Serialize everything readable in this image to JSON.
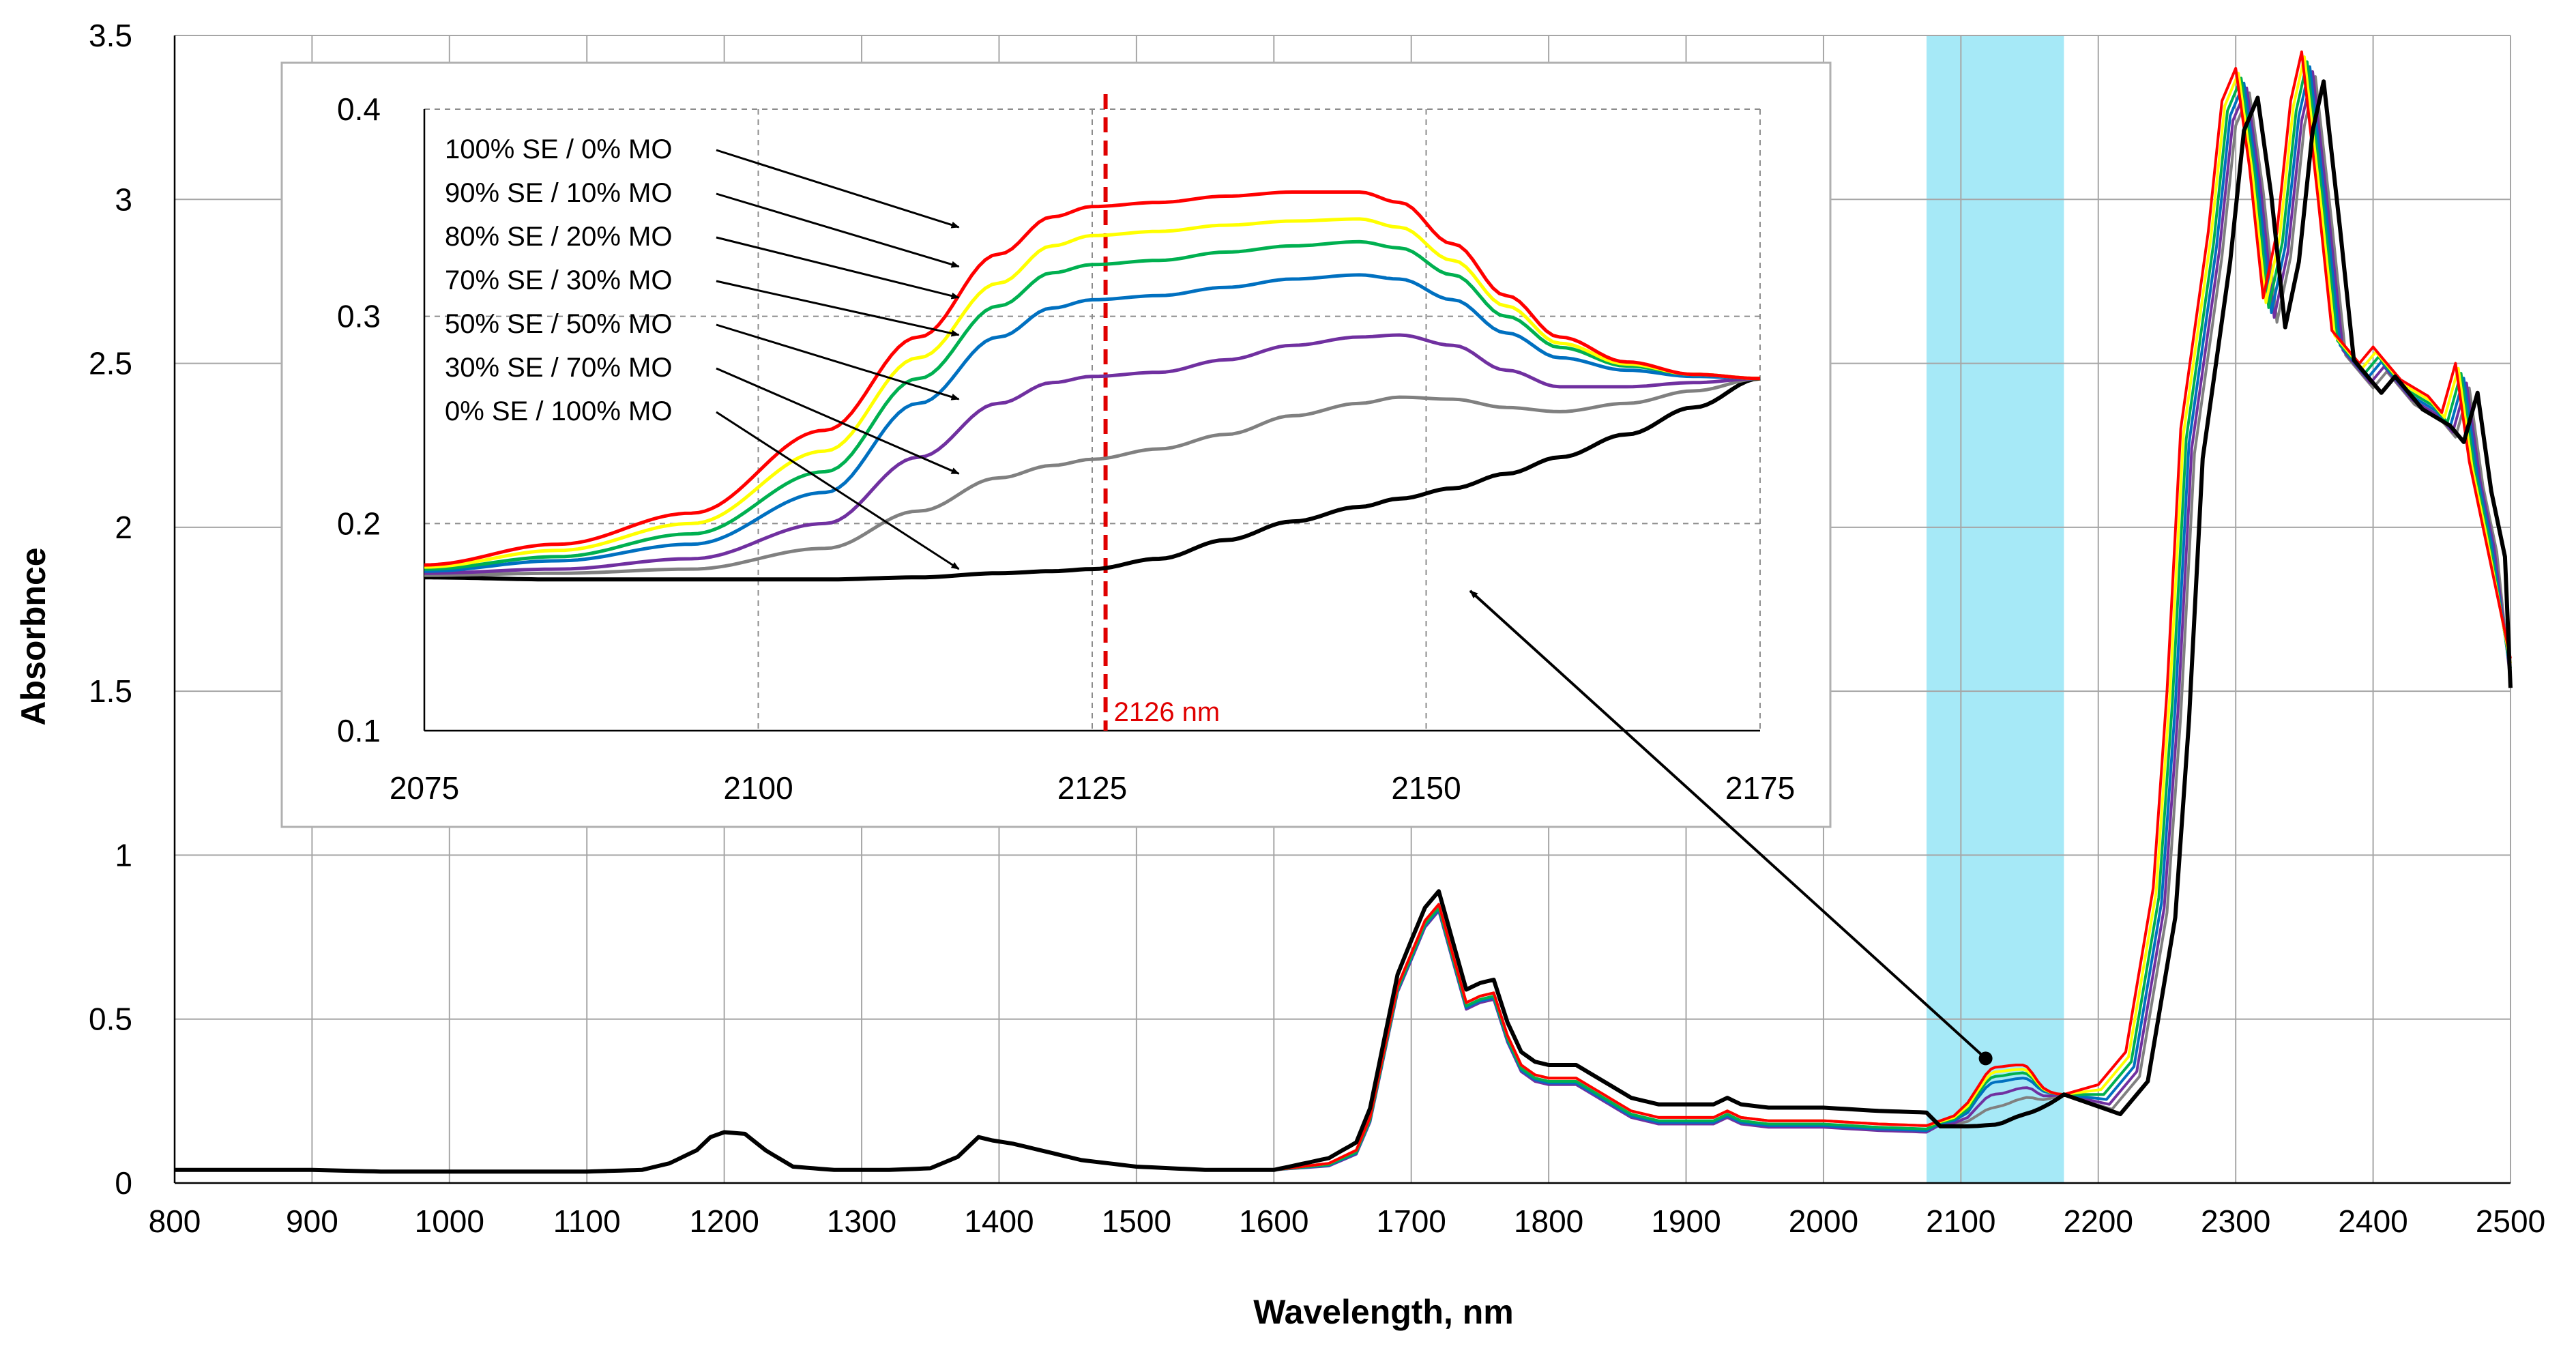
{
  "chart_data": [
    {
      "name": "main",
      "type": "line",
      "xlabel": "Wavelength, nm",
      "ylabel": "Absorbnce",
      "xlim": [
        800,
        2500
      ],
      "ylim": [
        0,
        3.5
      ],
      "xticks": [
        800,
        900,
        1000,
        1100,
        1200,
        1300,
        1400,
        1500,
        1600,
        1700,
        1800,
        1900,
        2000,
        2100,
        2200,
        2300,
        2400,
        2500
      ],
      "yticks": [
        0,
        0.5,
        1,
        1.5,
        2,
        2.5,
        3,
        3.5
      ],
      "ytick_labels": [
        "0",
        "0.5",
        "1",
        "1.5",
        "2",
        "2.5",
        "3",
        "3.5"
      ],
      "grid": true,
      "highlight_band": {
        "x_from": 2075,
        "x_to": 2175,
        "color": "#a6e9f7"
      },
      "series": [
        {
          "name": "100% SE / 0% MO",
          "color": "#ff0000"
        },
        {
          "name": "90% SE / 10% MO",
          "color": "#ffff00"
        },
        {
          "name": "80% SE / 20% MO",
          "color": "#00b050"
        },
        {
          "name": "70% SE / 30% MO",
          "color": "#0070c0"
        },
        {
          "name": "50% SE / 50% MO",
          "color": "#7030a0"
        },
        {
          "name": "30% SE / 70% MO",
          "color": "#808080"
        },
        {
          "name": "0% SE / 100% MO",
          "color": "#000000"
        }
      ],
      "base_profile": {
        "x": [
          800,
          850,
          900,
          950,
          1000,
          1050,
          1100,
          1140,
          1160,
          1180,
          1190,
          1200,
          1215,
          1230,
          1250,
          1280,
          1320,
          1350,
          1370,
          1385,
          1395,
          1410,
          1430,
          1460,
          1500,
          1550,
          1600,
          1640,
          1660,
          1670,
          1680,
          1690,
          1700,
          1710,
          1720,
          1730,
          1740,
          1750,
          1760,
          1770,
          1780,
          1790,
          1800,
          1820,
          1840,
          1860,
          1880,
          1900,
          1920,
          1930,
          1940,
          1960,
          2000,
          2040,
          2075
        ],
        "y": [
          0.04,
          0.04,
          0.04,
          0.035,
          0.035,
          0.035,
          0.035,
          0.04,
          0.06,
          0.1,
          0.14,
          0.155,
          0.15,
          0.1,
          0.05,
          0.04,
          0.04,
          0.045,
          0.08,
          0.14,
          0.13,
          0.12,
          0.1,
          0.07,
          0.05,
          0.04,
          0.04,
          0.06,
          0.1,
          0.2,
          0.4,
          0.6,
          0.7,
          0.8,
          0.85,
          0.7,
          0.55,
          0.57,
          0.58,
          0.45,
          0.36,
          0.33,
          0.32,
          0.32,
          0.27,
          0.22,
          0.2,
          0.2,
          0.2,
          0.22,
          0.2,
          0.19,
          0.19,
          0.18,
          0.175
        ]
      },
      "series_offsets_1600_2075": [
        0.0,
        0.0,
        -0.01,
        -0.015,
        -0.02,
        0.0,
        0.04
      ],
      "band_points_x": [
        2075,
        2100,
        2125,
        2145,
        2160,
        2175
      ],
      "tail_x": [
        2175,
        2200,
        2220,
        2240,
        2250,
        2260,
        2270,
        2280,
        2290,
        2300,
        2310,
        2320,
        2330,
        2340,
        2348,
        2360,
        2370,
        2380,
        2390,
        2400,
        2410,
        2420,
        2440,
        2450,
        2460,
        2470,
        2480,
        2500
      ],
      "tail_y": [
        0.25,
        0.3,
        0.4,
        0.9,
        1.5,
        2.3,
        2.6,
        2.9,
        3.3,
        3.4,
        3.1,
        2.7,
        2.9,
        3.3,
        3.45,
        3.0,
        2.6,
        2.55,
        2.5,
        2.55,
        2.5,
        2.45,
        2.4,
        2.35,
        2.5,
        2.2,
        2.0,
        1.6
      ],
      "tail_shift_x": [
        0,
        2,
        4,
        6,
        8,
        10,
        16
      ],
      "pointer_start_x": 2118,
      "pointer_start_y": 0.38
    },
    {
      "name": "inset",
      "type": "line",
      "xlim": [
        2075,
        2175
      ],
      "ylim": [
        0.1,
        0.4
      ],
      "xticks": [
        2075,
        2100,
        2125,
        2150,
        2175
      ],
      "yticks": [
        0.1,
        0.2,
        0.3,
        0.4
      ],
      "ytick_labels": [
        "0.1",
        "0.2",
        "0.3",
        "0.4"
      ],
      "grid": true,
      "marker_line": {
        "x": 2126,
        "label": "2126 nm",
        "color": "#e00000"
      },
      "x": [
        2075,
        2085,
        2095,
        2105,
        2112,
        2118,
        2122,
        2125,
        2130,
        2135,
        2140,
        2145,
        2148,
        2152,
        2156,
        2160,
        2165,
        2170,
        2175
      ],
      "series": [
        {
          "name": "100% SE / 0% MO",
          "color": "#ff0000",
          "values": [
            0.18,
            0.19,
            0.205,
            0.245,
            0.29,
            0.33,
            0.348,
            0.353,
            0.355,
            0.358,
            0.36,
            0.36,
            0.355,
            0.335,
            0.31,
            0.29,
            0.278,
            0.272,
            0.27
          ]
        },
        {
          "name": "90% SE / 10% MO",
          "color": "#ffff00",
          "values": [
            0.179,
            0.187,
            0.2,
            0.235,
            0.28,
            0.316,
            0.334,
            0.339,
            0.341,
            0.344,
            0.346,
            0.347,
            0.343,
            0.327,
            0.305,
            0.287,
            0.277,
            0.272,
            0.27
          ]
        },
        {
          "name": "80% SE / 20% MO",
          "color": "#00b050",
          "values": [
            0.178,
            0.184,
            0.195,
            0.225,
            0.27,
            0.305,
            0.321,
            0.325,
            0.327,
            0.331,
            0.334,
            0.336,
            0.333,
            0.32,
            0.3,
            0.285,
            0.276,
            0.272,
            0.27
          ]
        },
        {
          "name": "70% SE / 30% MO",
          "color": "#0070c0",
          "values": [
            0.177,
            0.182,
            0.19,
            0.215,
            0.258,
            0.29,
            0.304,
            0.308,
            0.31,
            0.314,
            0.318,
            0.32,
            0.318,
            0.308,
            0.292,
            0.28,
            0.274,
            0.271,
            0.27
          ]
        },
        {
          "name": "50% SE / 50% MO",
          "color": "#7030a0",
          "values": [
            0.176,
            0.178,
            0.183,
            0.2,
            0.232,
            0.258,
            0.268,
            0.271,
            0.273,
            0.279,
            0.286,
            0.29,
            0.291,
            0.286,
            0.274,
            0.266,
            0.266,
            0.268,
            0.27
          ]
        },
        {
          "name": "30% SE / 70% MO",
          "color": "#808080",
          "values": [
            0.175,
            0.176,
            0.178,
            0.188,
            0.206,
            0.222,
            0.228,
            0.231,
            0.236,
            0.243,
            0.252,
            0.258,
            0.261,
            0.26,
            0.256,
            0.254,
            0.258,
            0.264,
            0.27
          ]
        },
        {
          "name": "0% SE / 100% MO",
          "color": "#000000",
          "values": [
            0.174,
            0.173,
            0.173,
            0.173,
            0.174,
            0.176,
            0.177,
            0.178,
            0.183,
            0.192,
            0.201,
            0.208,
            0.212,
            0.217,
            0.224,
            0.232,
            0.243,
            0.256,
            0.27
          ]
        }
      ],
      "legend": [
        {
          "label": "100% SE / 0% MO",
          "target_x": 2114,
          "target_y": 0.345
        },
        {
          "label": "90% SE / 10% MO",
          "target_x": 2114,
          "target_y": 0.326
        },
        {
          "label": "80% SE / 20% MO",
          "target_x": 2114,
          "target_y": 0.311
        },
        {
          "label": "70% SE / 30% MO",
          "target_x": 2114,
          "target_y": 0.293
        },
        {
          "label": "50% SE / 50% MO",
          "target_x": 2114,
          "target_y": 0.262
        },
        {
          "label": "30% SE / 70% MO",
          "target_x": 2114,
          "target_y": 0.226
        },
        {
          "label": "0% SE / 100% MO",
          "target_x": 2114,
          "target_y": 0.18
        }
      ]
    }
  ]
}
